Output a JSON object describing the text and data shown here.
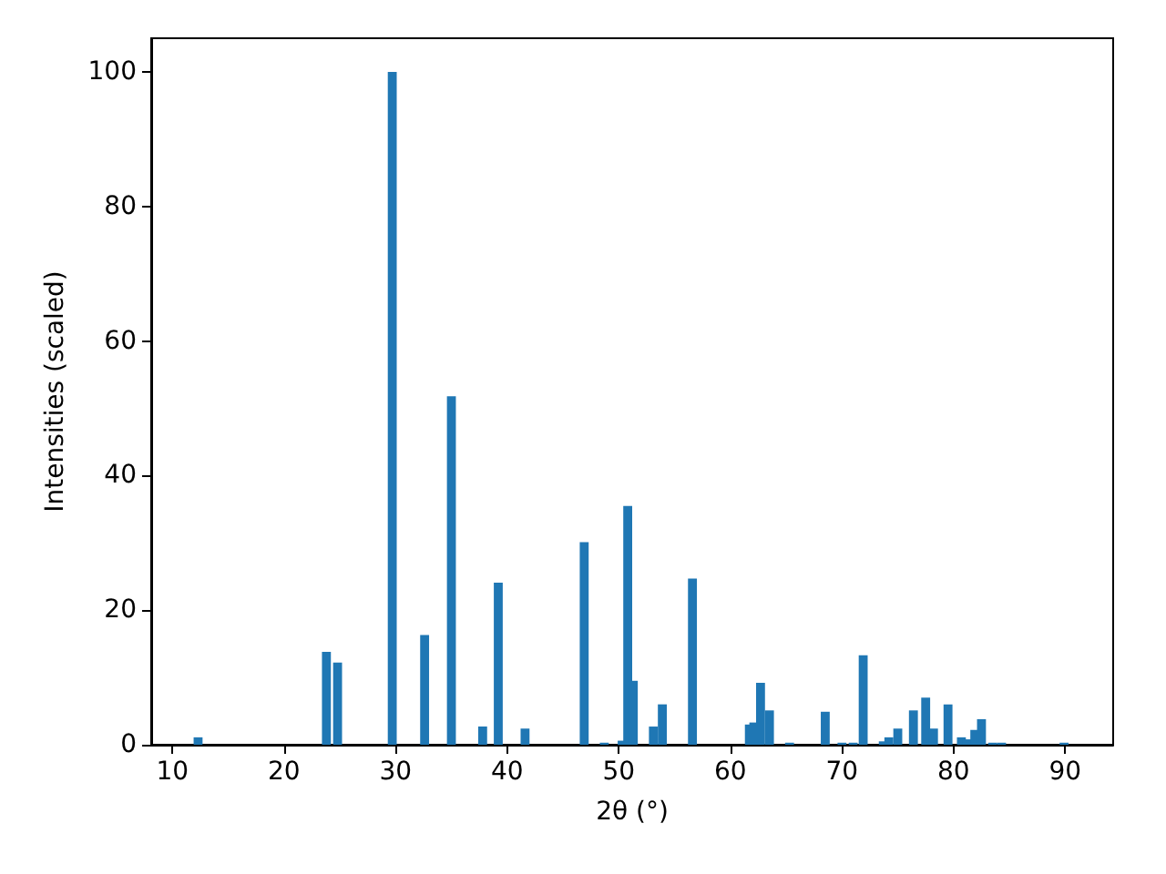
{
  "chart_data": {
    "type": "bar",
    "xlabel": "2θ (°)",
    "ylabel": "Intensities (scaled)",
    "color": "#1f77b4",
    "x": [
      12.3,
      23.8,
      24.8,
      29.7,
      32.6,
      35.0,
      37.8,
      39.2,
      41.6,
      46.9,
      48.7,
      50.3,
      50.8,
      51.3,
      53.1,
      53.9,
      56.6,
      61.7,
      62.1,
      62.7,
      63.5,
      65.3,
      68.5,
      70.0,
      71.0,
      71.9,
      73.7,
      74.2,
      75.0,
      76.4,
      77.5,
      78.2,
      79.5,
      80.7,
      81.2,
      81.9,
      82.5,
      83.5,
      84.3,
      89.9
    ],
    "values": [
      1.1,
      13.8,
      12.2,
      100,
      16.3,
      51.8,
      2.7,
      24.1,
      2.4,
      30.1,
      0.3,
      0.6,
      35.5,
      9.5,
      2.7,
      6.0,
      24.7,
      3.0,
      3.3,
      9.2,
      5.1,
      0.3,
      4.9,
      0.3,
      0.3,
      13.3,
      0.5,
      1.1,
      2.4,
      5.1,
      7.0,
      2.4,
      6.0,
      1.1,
      0.8,
      2.2,
      3.8,
      0.3,
      0.3,
      0.3
    ],
    "xlim": [
      8.1,
      94.3
    ],
    "xticks": [
      10,
      20,
      30,
      40,
      50,
      60,
      70,
      80,
      90
    ],
    "ylim": [
      0,
      105
    ],
    "yticks": [
      0,
      20,
      40,
      60,
      80,
      100
    ],
    "grid": false
  }
}
